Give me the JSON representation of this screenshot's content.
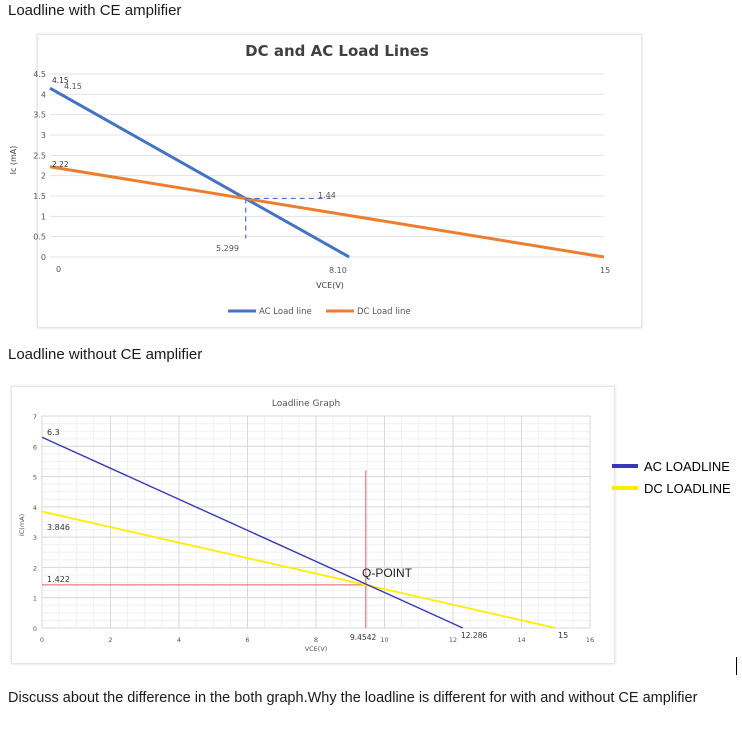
{
  "headings": {
    "with_ce": "Loadline with CE amplifier",
    "without_ce": "Loadline without CE amplifier"
  },
  "question": "Discuss about the difference in the both graph.Why the loadline is different for with and without CE amplifier",
  "chart_data": [
    {
      "type": "line",
      "title": "DC and AC Load Lines",
      "xlabel": "VCE(V)",
      "ylabel": "Ic (mA)",
      "xlim": [
        0,
        15
      ],
      "ylim": [
        0,
        4.5
      ],
      "yticks": [
        "0",
        "0.5",
        "1",
        "1.5",
        "2",
        "2.5",
        "3",
        "3.5",
        "4",
        "4.5"
      ],
      "series": [
        {
          "name": "AC Load line",
          "color": "#4472c4",
          "x": [
            0,
            8.1
          ],
          "y": [
            4.15,
            0
          ]
        },
        {
          "name": "DC Load line",
          "color": "#ed7d31",
          "x": [
            0,
            15
          ],
          "y": [
            2.22,
            0
          ]
        }
      ],
      "q_point": {
        "x": 5.299,
        "y": 1.44
      },
      "annotations": [
        "4.15",
        "4.15",
        "2.22",
        "0",
        "5.299",
        "1.44",
        "8.10",
        "15"
      ],
      "legend_position": "bottom",
      "grid": true
    },
    {
      "type": "line",
      "title": "Loadline Graph",
      "xlabel": "VCE(V)",
      "ylabel": "IC(mA)",
      "xlim": [
        0,
        16
      ],
      "ylim": [
        0,
        7
      ],
      "xticks": [
        "0",
        "2",
        "4",
        "6",
        "8",
        "10",
        "12",
        "14",
        "16"
      ],
      "yticks": [
        "0",
        "1",
        "2",
        "3",
        "4",
        "5",
        "6",
        "7"
      ],
      "series": [
        {
          "name": "AC LOADLINE",
          "color": "#3838b8",
          "x": [
            0,
            12.286
          ],
          "y": [
            6.3,
            0
          ]
        },
        {
          "name": "DC LOADLINE",
          "color": "#ffee00",
          "x": [
            0,
            15
          ],
          "y": [
            3.846,
            0
          ]
        }
      ],
      "q_point": {
        "x": 9.4542,
        "y": 1.422,
        "label": "Q-POINT"
      },
      "guide_color": "#e06060",
      "annotations": [
        "6.3",
        "3.846",
        "1.422",
        "9.4542",
        "12.286",
        "15"
      ],
      "legend_position": "right",
      "grid": true
    }
  ]
}
